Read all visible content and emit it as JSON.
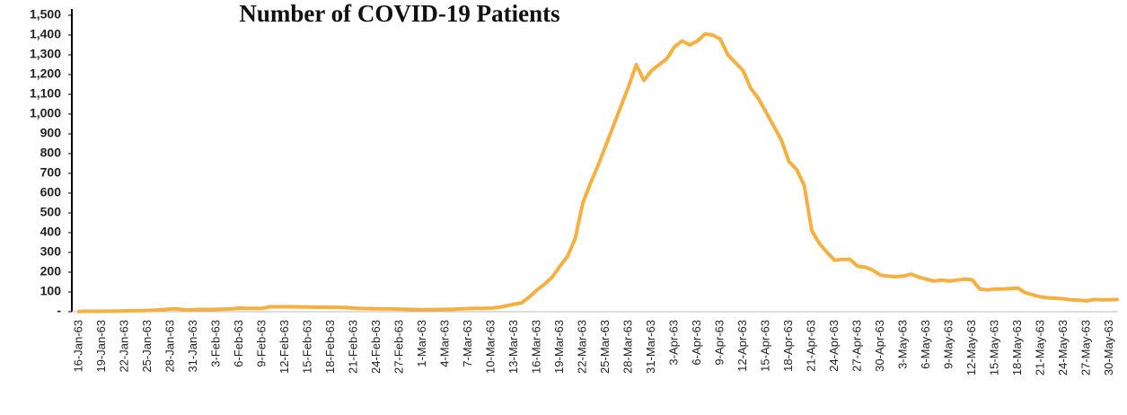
{
  "chart_data": {
    "type": "line",
    "title": "Number of COVID-19 Patients",
    "categories": [
      "16-Jan-63",
      null,
      null,
      "19-Jan-63",
      null,
      null,
      "22-Jan-63",
      null,
      null,
      "25-Jan-63",
      null,
      null,
      "28-Jan-63",
      null,
      null,
      "31-Jan-63",
      null,
      null,
      "3-Feb-63",
      null,
      null,
      "6-Feb-63",
      null,
      null,
      "9-Feb-63",
      null,
      null,
      "12-Feb-63",
      null,
      null,
      "15-Feb-63",
      null,
      null,
      "18-Feb-63",
      null,
      null,
      "21-Feb-63",
      null,
      null,
      "24-Feb-63",
      null,
      null,
      "27-Feb-63",
      null,
      null,
      "1-Mar-63",
      null,
      null,
      "4-Mar-63",
      null,
      null,
      "7-Mar-63",
      null,
      null,
      "10-Mar-63",
      null,
      null,
      "13-Mar-63",
      null,
      null,
      "16-Mar-63",
      null,
      null,
      "19-Mar-63",
      null,
      null,
      "22-Mar-63",
      null,
      null,
      "25-Mar-63",
      null,
      null,
      "28-Mar-63",
      null,
      null,
      "31-Mar-63",
      null,
      null,
      "3-Apr-63",
      null,
      null,
      "6-Apr-63",
      null,
      null,
      "9-Apr-63",
      null,
      null,
      "12-Apr-63",
      null,
      null,
      "15-Apr-63",
      null,
      null,
      "18-Apr-63",
      null,
      null,
      "21-Apr-63",
      null,
      null,
      "24-Apr-63",
      null,
      null,
      "27-Apr-63",
      null,
      null,
      "30-Apr-63",
      null,
      null,
      "3-May-63",
      null,
      null,
      "6-May-63",
      null,
      null,
      "9-May-63",
      null,
      null,
      "12-May-63",
      null,
      null,
      "15-May-63",
      null,
      null,
      "18-May-63",
      null,
      null,
      "21-May-63",
      null,
      null,
      "24-May-63",
      null,
      null,
      "27-May-63",
      null,
      null,
      "30-May-63",
      null
    ],
    "series": [
      {
        "color": "#f5b041",
        "values": [
          1,
          2,
          2,
          2,
          3,
          3,
          4,
          5,
          5,
          6,
          8,
          10,
          14,
          14,
          8,
          10,
          12,
          11,
          12,
          13,
          14,
          18,
          17,
          17,
          17,
          25,
          25,
          25,
          25,
          24,
          24,
          23,
          23,
          22,
          22,
          21,
          18,
          16,
          16,
          15,
          14,
          14,
          13,
          12,
          11,
          10,
          10,
          11,
          12,
          12,
          14,
          16,
          17,
          17,
          18,
          22,
          30,
          38,
          45,
          75,
          110,
          140,
          175,
          230,
          280,
          370,
          550,
          650,
          740,
          840,
          940,
          1040,
          1140,
          1250,
          1170,
          1220,
          1250,
          1280,
          1340,
          1370,
          1350,
          1370,
          1405,
          1400,
          1380,
          1300,
          1260,
          1220,
          1130,
          1080,
          1010,
          940,
          870,
          760,
          720,
          640,
          410,
          345,
          300,
          260,
          265,
          265,
          230,
          225,
          210,
          185,
          180,
          178,
          180,
          190,
          175,
          165,
          155,
          160,
          155,
          160,
          165,
          162,
          115,
          110,
          115,
          115,
          117,
          120,
          95,
          85,
          75,
          70,
          68,
          65,
          60,
          58,
          55,
          62,
          60,
          60,
          62
        ]
      }
    ],
    "ylim": [
      0,
      1500
    ],
    "yticks": [
      {
        "value": 0,
        "label": "-"
      },
      100,
      200,
      300,
      400,
      500,
      600,
      700,
      800,
      900,
      {
        "value": 1000,
        "label": "1,000"
      },
      {
        "value": 1100,
        "label": "1,100"
      },
      {
        "value": 1200,
        "label": "1,200"
      },
      {
        "value": 1300,
        "label": "1,300"
      },
      {
        "value": 1400,
        "label": "1,400"
      },
      {
        "value": 1500,
        "label": "1,500"
      }
    ]
  }
}
